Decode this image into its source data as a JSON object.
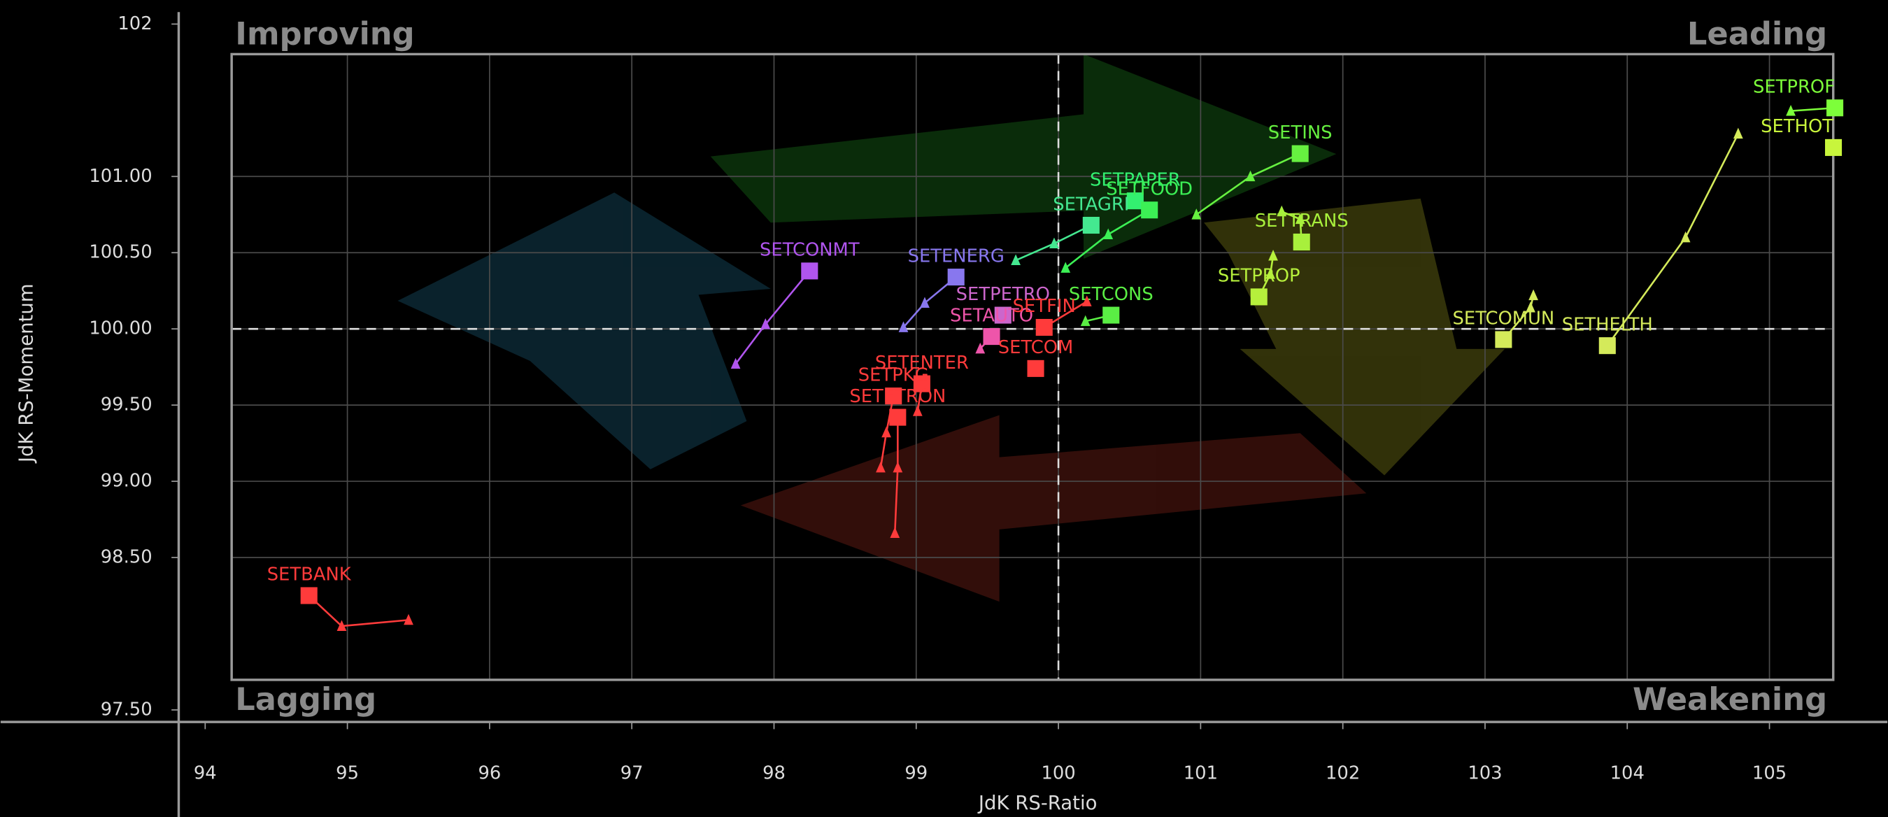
{
  "chart_data": {
    "type": "scatter",
    "x_label": "JdK RS-Ratio",
    "y_label": "JdK RS-Momentum",
    "quadrants": [
      "Improving",
      "Leading",
      "Lagging",
      "Weakening"
    ],
    "xlim": [
      94,
      105.6
    ],
    "ylim": [
      97.5,
      102
    ],
    "xticks": [
      94,
      95,
      96,
      97,
      98,
      99,
      100,
      101,
      102,
      103,
      104,
      105
    ],
    "yticks": [
      {
        "value": 97.5,
        "label": "97.50"
      },
      {
        "value": 98.5,
        "label": "98.50"
      },
      {
        "value": 99,
        "label": "99.00"
      },
      {
        "value": 99.5,
        "label": "99.50"
      },
      {
        "value": 100,
        "label": "100.00"
      },
      {
        "value": 100.5,
        "label": "100.50"
      },
      {
        "value": 101,
        "label": "101.00"
      },
      102
    ],
    "grid": true,
    "reference_lines": {
      "x": 100,
      "y": 100
    },
    "series": [
      {
        "name": "SETPROF",
        "color": "#7dff3a",
        "x": [
          105.15,
          105.46
        ],
        "y": [
          101.43,
          101.45
        ]
      },
      {
        "name": "SETHOT",
        "color": "#c8f53c",
        "x": [
          105.45
        ],
        "y": [
          101.19
        ]
      },
      {
        "name": "SETHELTH",
        "color": "#d4ea5a",
        "x": [
          104.78,
          104.41,
          103.86
        ],
        "y": [
          101.28,
          100.6,
          99.89
        ]
      },
      {
        "name": "SETCOMUN",
        "color": "#d4ea5a",
        "x": [
          103.34,
          103.32,
          103.13
        ],
        "y": [
          100.22,
          100.14,
          99.93
        ]
      },
      {
        "name": "SETPROP",
        "color": "#b6f03c",
        "x": [
          101.51,
          101.49,
          101.41
        ],
        "y": [
          100.48,
          100.36,
          100.21
        ]
      },
      {
        "name": "SETTRANS",
        "color": "#a8f03c",
        "x": [
          101.57,
          101.7,
          101.71
        ],
        "y": [
          100.77,
          100.72,
          100.57
        ]
      },
      {
        "name": "SETINS",
        "color": "#66f040",
        "x": [
          100.97,
          101.35,
          101.7
        ],
        "y": [
          100.75,
          101.0,
          101.15
        ]
      },
      {
        "name": "SETPAPER",
        "color": "#33f070",
        "x": [
          100.54
        ],
        "y": [
          100.84
        ]
      },
      {
        "name": "SETFOOD",
        "color": "#3cf055",
        "x": [
          100.05,
          100.35,
          100.64
        ],
        "y": [
          100.4,
          100.62,
          100.78
        ]
      },
      {
        "name": "SETAGRI",
        "color": "#44e890",
        "x": [
          99.7,
          99.97,
          100.23
        ],
        "y": [
          100.45,
          100.56,
          100.68
        ]
      },
      {
        "name": "SETCONS",
        "color": "#5aee44",
        "x": [
          100.19,
          100.37
        ],
        "y": [
          100.05,
          100.09
        ]
      },
      {
        "name": "SETENERG",
        "color": "#8877ee",
        "x": [
          98.91,
          99.06,
          99.28
        ],
        "y": [
          100.01,
          100.17,
          100.34
        ]
      },
      {
        "name": "SETCONMT",
        "color": "#b055ee",
        "x": [
          97.73,
          97.94,
          98.25
        ],
        "y": [
          99.77,
          100.03,
          100.38
        ]
      },
      {
        "name": "SETPETRO",
        "color": "#cc66cc",
        "x": [
          99.61
        ],
        "y": [
          100.09
        ]
      },
      {
        "name": "SETAUTO",
        "color": "#ee55aa",
        "x": [
          99.45,
          99.53
        ],
        "y": [
          99.87,
          99.95
        ]
      },
      {
        "name": "SETFIN",
        "color": "#ff3b3b",
        "x": [
          100.2,
          99.9
        ],
        "y": [
          100.18,
          100.01
        ]
      },
      {
        "name": "SETCOM",
        "color": "#ff3b3b",
        "x": [
          99.84
        ],
        "y": [
          99.74
        ]
      },
      {
        "name": "SETENTER",
        "color": "#ff3b3b",
        "x": [
          99.01,
          99.04
        ],
        "y": [
          99.46,
          99.64
        ]
      },
      {
        "name": "SETPKG",
        "color": "#ff3b3b",
        "x": [
          98.75,
          98.79,
          98.84
        ],
        "y": [
          99.09,
          99.32,
          99.56
        ]
      },
      {
        "name": "SETETRON",
        "color": "#ff3b3b",
        "x": [
          98.85,
          98.87,
          98.87
        ],
        "y": [
          98.66,
          99.09,
          99.42
        ]
      },
      {
        "name": "SETBANK",
        "color": "#ff3b3b",
        "x": [
          95.43,
          94.96,
          94.73
        ],
        "y": [
          98.09,
          98.05,
          98.25
        ]
      }
    ]
  }
}
